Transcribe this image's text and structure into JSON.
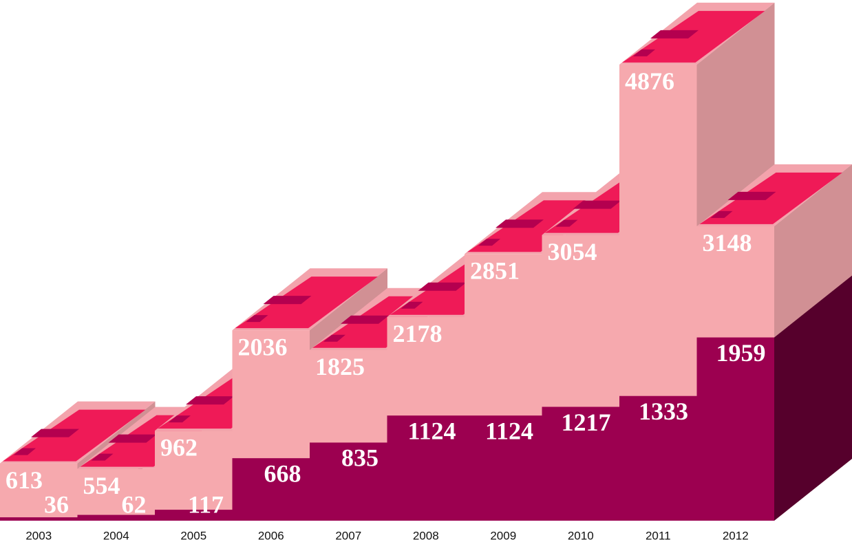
{
  "chart_data": {
    "type": "bar",
    "categories": [
      "2003",
      "2004",
      "2005",
      "2006",
      "2007",
      "2008",
      "2009",
      "2010",
      "2011",
      "2012"
    ],
    "series": [
      {
        "color": "#f6a9ae",
        "values": [
          613,
          554,
          962,
          2036,
          1825,
          2178,
          2851,
          3054,
          4876,
          3148
        ]
      },
      {
        "color": "#9c0050",
        "values": [
          36,
          62,
          117,
          668,
          835,
          1124,
          1124,
          1217,
          1333,
          1959
        ]
      }
    ]
  }
}
